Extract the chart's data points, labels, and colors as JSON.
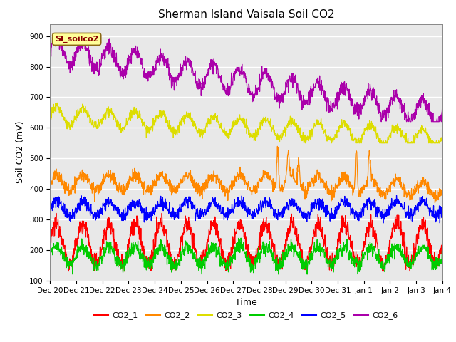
{
  "title": "Sherman Island Vaisala Soil CO2",
  "ylabel": "Soil CO2 (mV)",
  "xlabel": "Time",
  "legend_label": "SI_soilco2",
  "series_names": [
    "CO2_1",
    "CO2_2",
    "CO2_3",
    "CO2_4",
    "CO2_5",
    "CO2_6"
  ],
  "series_colors": [
    "#ff0000",
    "#ff8800",
    "#dddd00",
    "#00cc00",
    "#0000ff",
    "#aa00aa"
  ],
  "ylim": [
    100,
    940
  ],
  "yticks": [
    100,
    200,
    300,
    400,
    500,
    600,
    700,
    800,
    900
  ],
  "background_color": "#e8e8e8",
  "fig_background": "#ffffff",
  "title_fontsize": 11,
  "axis_label_fontsize": 9,
  "tick_fontsize": 7.5,
  "linewidth": 0.9
}
